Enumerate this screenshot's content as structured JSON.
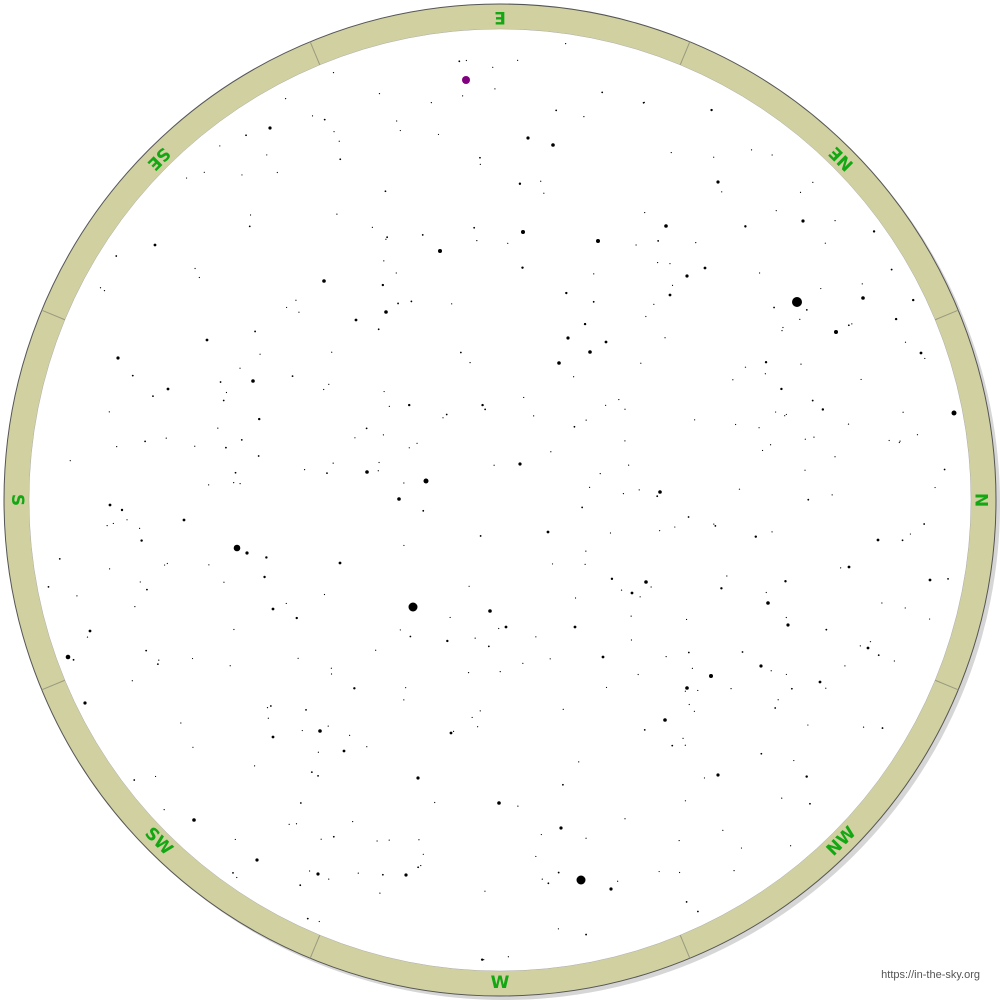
{
  "compass": {
    "labels": [
      "N",
      "NW",
      "W",
      "SW",
      "S",
      "SE",
      "E",
      "NE"
    ]
  },
  "credit": "https://in-the-sky.org"
}
